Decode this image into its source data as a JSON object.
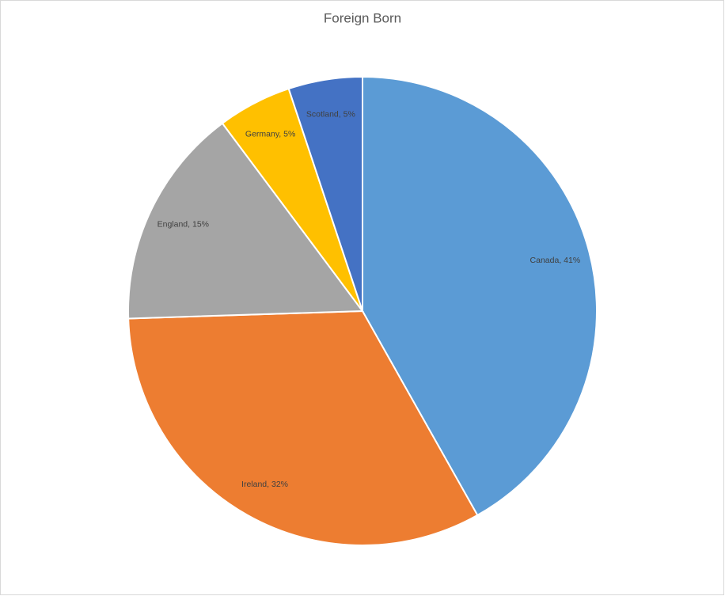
{
  "chart_data": {
    "type": "pie",
    "title": "Foreign Born",
    "categories": [
      "Canada",
      "Ireland",
      "England",
      "Germany",
      "Scotland"
    ],
    "values": [
      41,
      32,
      15,
      5,
      5
    ],
    "value_labels": [
      "Canada, 41%",
      "Ireland, 32%",
      "England, 15%",
      "Germany, 5%",
      "Scotland, 5%"
    ],
    "colors": [
      "#5b9bd5",
      "#ed7d31",
      "#a5a5a5",
      "#ffc000",
      "#4472c4"
    ]
  }
}
